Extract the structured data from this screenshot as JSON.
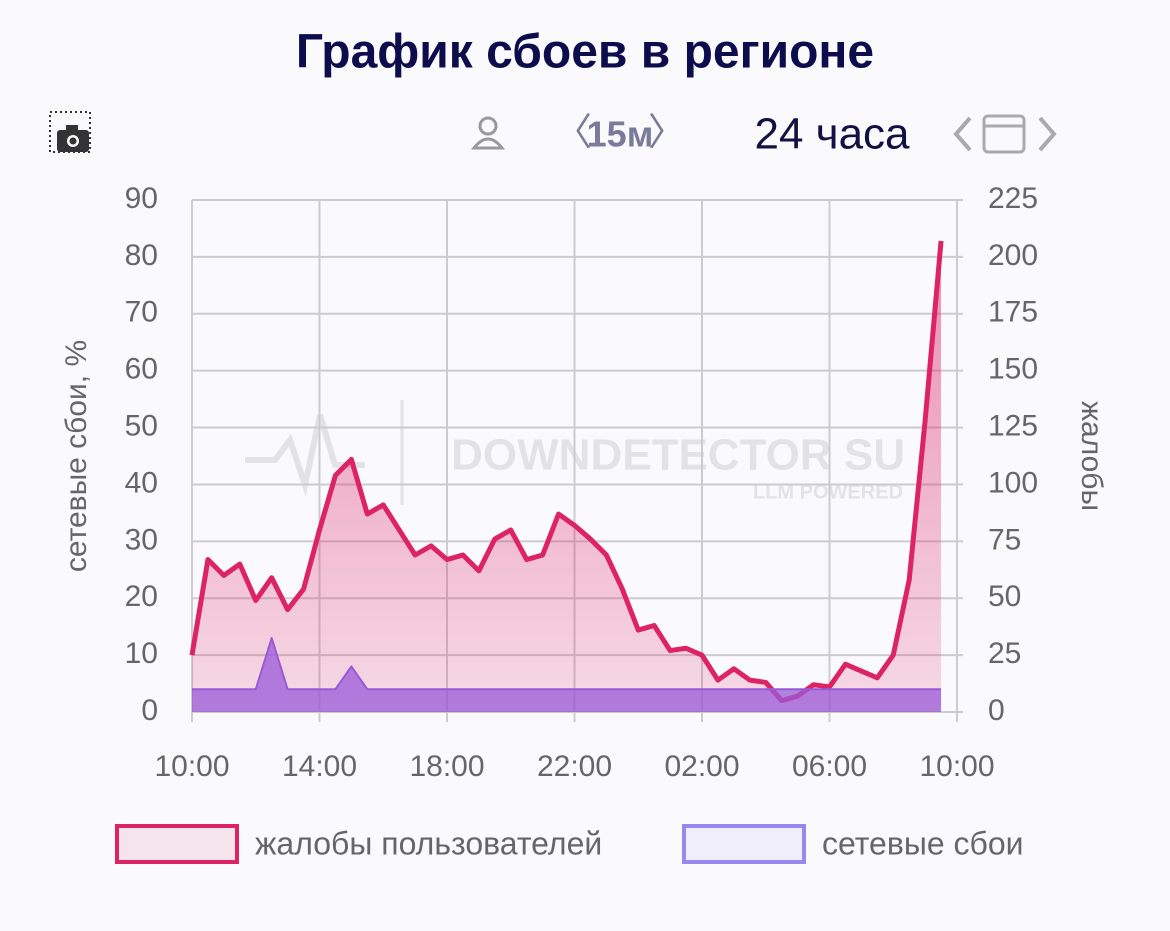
{
  "header": {
    "title": "График сбоев в регионе",
    "interval": "15м",
    "range": "24 часа"
  },
  "watermark": {
    "text": "DOWNDETECTOR SU",
    "subtext": "LLM POWERED"
  },
  "chart_data": {
    "type": "area",
    "ylabel": "сетевые сбои, %",
    "y2label": "жалобы",
    "x": [
      "10:00",
      "10:30",
      "11:00",
      "11:30",
      "12:00",
      "12:30",
      "13:00",
      "13:30",
      "14:00",
      "14:30",
      "15:00",
      "15:30",
      "16:00",
      "16:30",
      "17:00",
      "17:30",
      "18:00",
      "18:30",
      "19:00",
      "19:30",
      "20:00",
      "20:30",
      "21:00",
      "21:30",
      "22:00",
      "22:30",
      "23:00",
      "23:30",
      "00:00",
      "00:30",
      "01:00",
      "01:30",
      "02:00",
      "02:30",
      "03:00",
      "03:30",
      "04:00",
      "04:30",
      "05:00",
      "05:30",
      "06:00",
      "06:30",
      "07:00",
      "07:30",
      "08:00",
      "08:30",
      "09:00",
      "09:30"
    ],
    "series": [
      {
        "name": "жалобы пользователей",
        "color": "#dc2463",
        "axis": "y2",
        "values": [
          25,
          67,
          60,
          65,
          49,
          59,
          45,
          54,
          80,
          104,
          111,
          87,
          91,
          80,
          69,
          73,
          67,
          69,
          62,
          76,
          80,
          67,
          69,
          87,
          82,
          76,
          69,
          54,
          36,
          38,
          27,
          28,
          25,
          14,
          19,
          14,
          13,
          5,
          7,
          12,
          11,
          21,
          18,
          15,
          25,
          58,
          128,
          207
        ]
      },
      {
        "name": "сетевые сбои",
        "color": "#9b87f0",
        "values": [
          4,
          4,
          4,
          4,
          4,
          13,
          4,
          4,
          4,
          4,
          8,
          4,
          4,
          4,
          4,
          4,
          4,
          4,
          4,
          4,
          4,
          4,
          4,
          4,
          4,
          4,
          4,
          4,
          4,
          4,
          4,
          4,
          4,
          4,
          4,
          4,
          4,
          4,
          4,
          4,
          4,
          4,
          4,
          4,
          4,
          4,
          4,
          4
        ]
      }
    ],
    "ylim": [
      0,
      90
    ],
    "yticks": [
      0,
      10,
      20,
      30,
      40,
      50,
      60,
      70,
      80,
      90
    ],
    "y2lim": [
      0,
      225
    ],
    "y2ticks": [
      0,
      25,
      50,
      75,
      100,
      125,
      150,
      175,
      200,
      225
    ],
    "xticks": [
      "10:00",
      "14:00",
      "18:00",
      "22:00",
      "02:00",
      "06:00",
      "10:00"
    ],
    "grid": true,
    "legend": "bottom"
  }
}
